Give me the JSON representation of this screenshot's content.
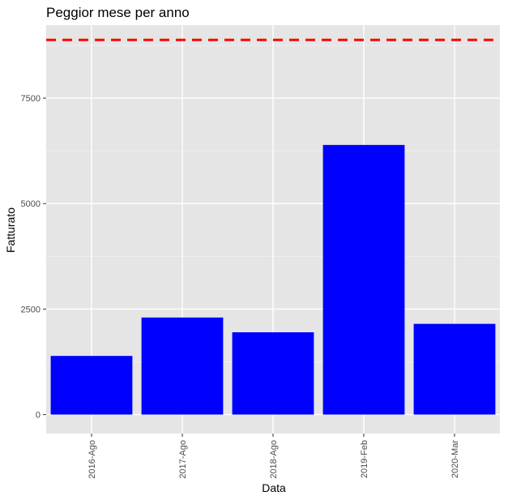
{
  "chart_data": {
    "type": "bar",
    "title": "Peggior mese per anno",
    "xlabel": "Data",
    "ylabel": "Fatturato",
    "categories": [
      "2016-Ago",
      "2017-Ago",
      "2018-Ago",
      "2019-Feb",
      "2020-Mar"
    ],
    "values": [
      1390,
      2300,
      1950,
      6390,
      2150
    ],
    "yticks": [
      0,
      2500,
      5000,
      7500
    ],
    "ylim": [
      -450,
      9230
    ],
    "reference_line": {
      "value": 8880,
      "style": "dashed",
      "color": "#ff0000"
    },
    "bar_color": "#0000ff",
    "panel_color": "#e5e5e5",
    "grid": true,
    "legend": "none"
  }
}
